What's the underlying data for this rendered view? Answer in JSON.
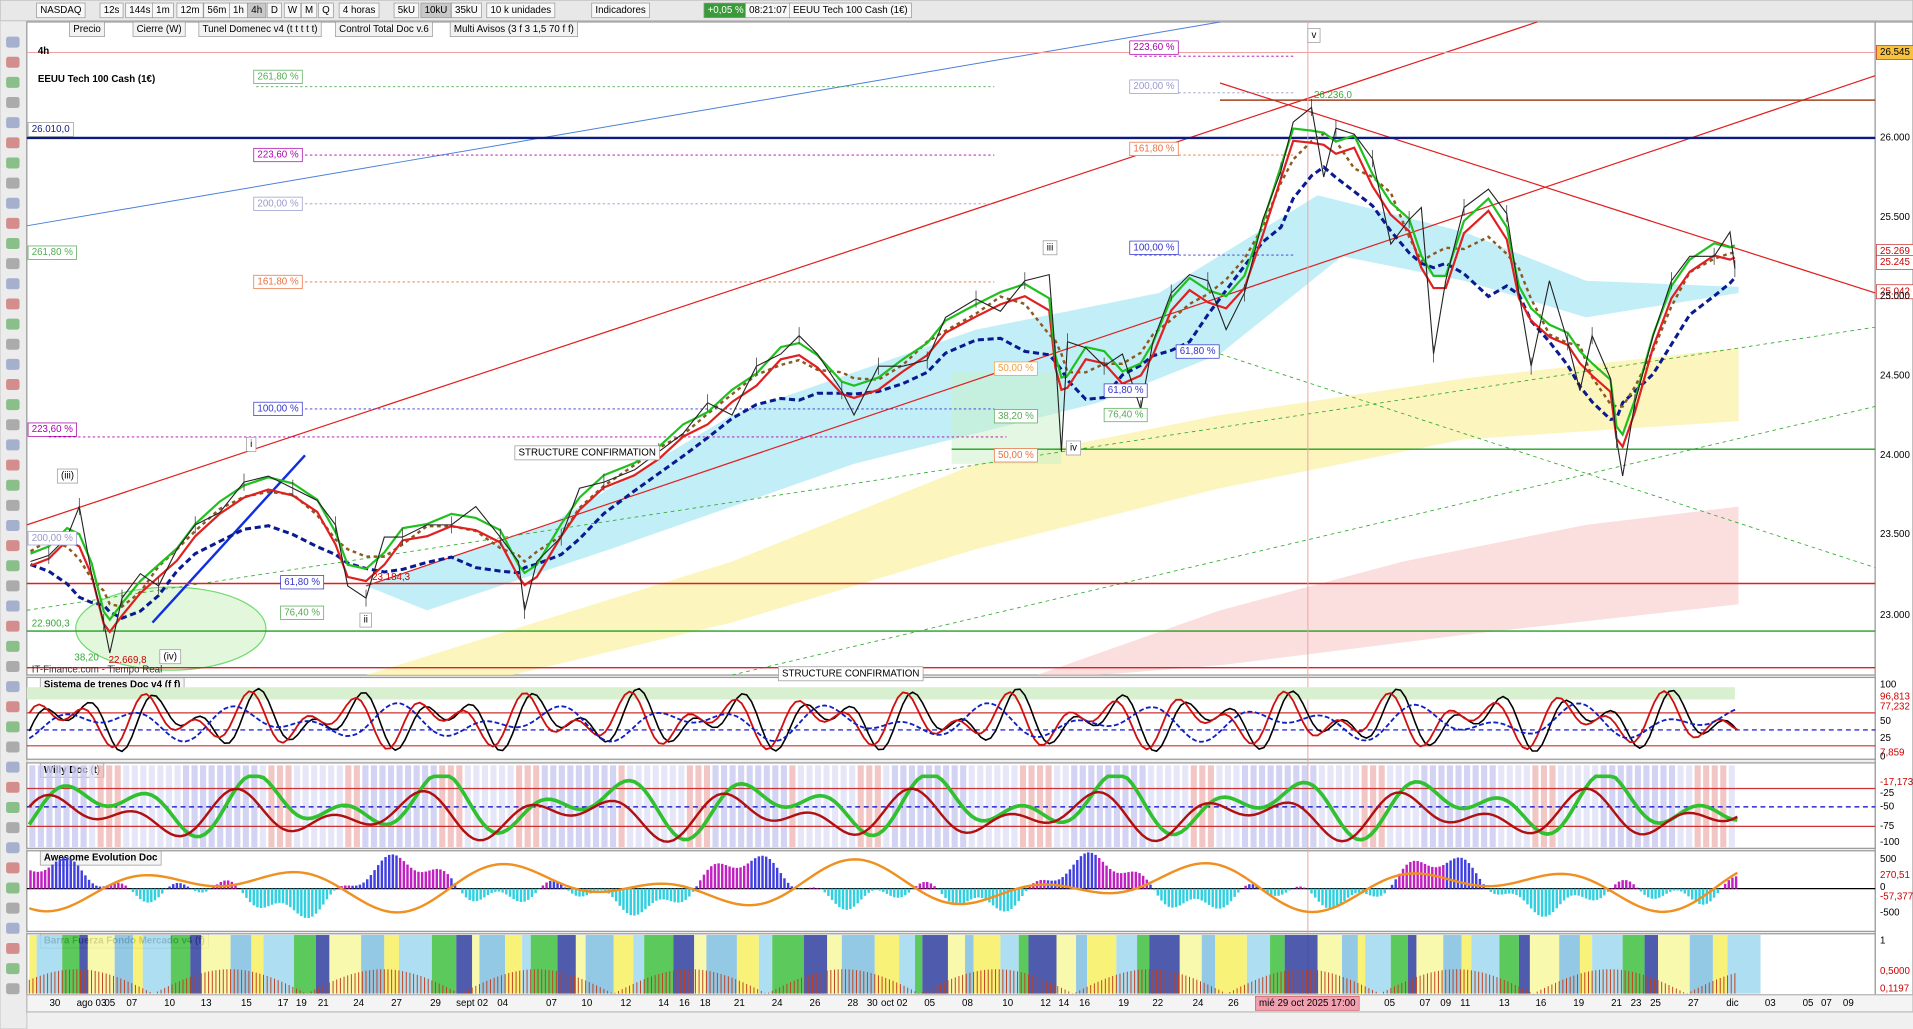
{
  "toolbar": {
    "items": [
      "NASDAQ",
      "12s",
      "144s",
      "1m",
      "12m",
      "56m",
      "1h",
      "4h",
      "D",
      "W",
      "M",
      "Q",
      "4 horas",
      "5kU",
      "10kU",
      "35kU",
      "10 k unidades",
      "Indicadores",
      "+0,05 %",
      "08:21:07",
      "EEUU Tech 100 Cash (1€)"
    ],
    "indicators": [
      "Precio",
      "Cierre (W)",
      "Tunel Domenec v4 (t t t t t)",
      "Control Total Doc v.6",
      "Multi Avisos (3 f 3 1,5 70 f f)"
    ]
  },
  "chart": {
    "timeframe": "4h",
    "instrument": "EEUU Tech 100 Cash (1€)",
    "price_labels": [
      "26.545",
      "26.000",
      "25.500",
      "25.269",
      "25.245",
      "25.042",
      "25.000",
      "24.500",
      "24.000",
      "23.500",
      "23.000"
    ],
    "fib_labels": [
      "223,60 %",
      "200,00 %",
      "161,80 %",
      "100,00 %",
      "261,80 %",
      "223,60 %",
      "200,00 %",
      "261,80 %",
      "161,80 %",
      "100,00 %",
      "223,60 %",
      "200,00 %",
      "61,80 %",
      "76,40 %",
      "38,20 %",
      "50,00 %",
      "61,80 %",
      "76,40 %",
      "61,80 %",
      "50,00 %"
    ],
    "annotations": [
      "26.010,0",
      "26.236,0",
      "STRUCTURE CONFIRMATION",
      "STRUCTURE CONFIRMATION",
      "(iii)",
      "(iv)",
      "i",
      "ii",
      "iii",
      "iv",
      "v",
      "22.900,3",
      "22.669,8",
      "38,20",
      "23.184,3"
    ],
    "watermark": "IT-Finance.com - Tiempo Real"
  },
  "panels": [
    {
      "title": "Sistema de trenes Doc v4 (f f)",
      "labels": [
        "100",
        "96,813",
        "77,232",
        "50",
        "25",
        "7,859",
        "0"
      ]
    },
    {
      "title": "Willy Doc (t)",
      "labels": [
        "-17,173",
        "-25",
        "-50",
        "-75",
        "-100"
      ]
    },
    {
      "title": "Awesome Evolution Doc",
      "labels": [
        "500",
        "270,51",
        "0",
        "-57,377",
        "-500"
      ]
    },
    {
      "title": "Barra Fuerza Fondo Mercado v4 (f)",
      "labels": [
        "1",
        "0,5000",
        "0,1197"
      ]
    }
  ],
  "dates": [
    "30",
    "ago 03",
    "05",
    "07",
    "10",
    "13",
    "15",
    "17",
    "19",
    "21",
    "24",
    "27",
    "29",
    "sept 02",
    "04",
    "07",
    "10",
    "12",
    "14",
    "16",
    "18",
    "21",
    "24",
    "26",
    "28",
    "30",
    "oct 02",
    "05",
    "08",
    "10",
    "12",
    "14",
    "16",
    "19",
    "22",
    "24",
    "26",
    "05",
    "07",
    "09",
    "11",
    "13",
    "16",
    "19",
    "21",
    "23",
    "25",
    "27",
    "dic",
    "03",
    "05",
    "07",
    "09"
  ],
  "crosshair_date": "mié 29 oct 2025 17:00"
}
